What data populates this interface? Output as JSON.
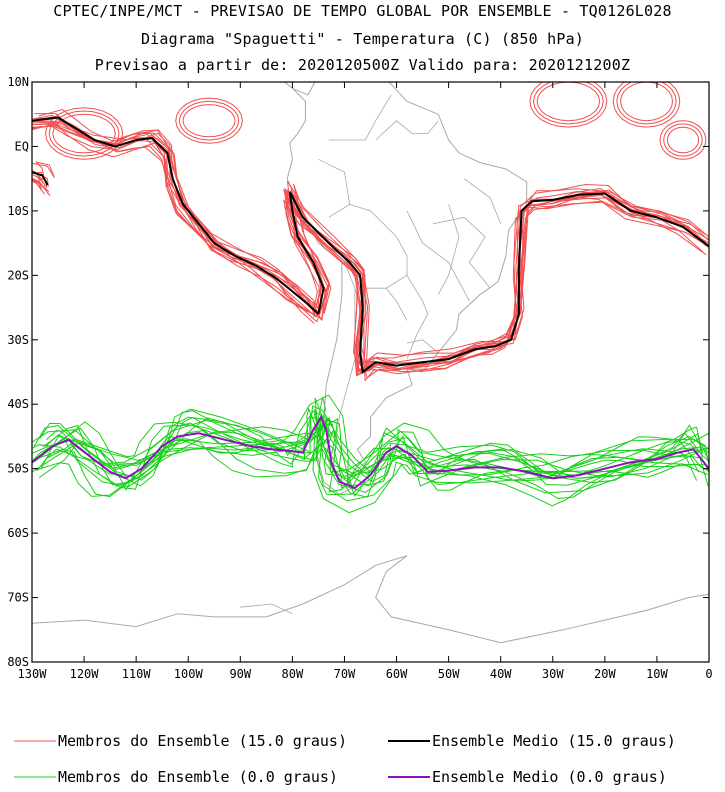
{
  "titles": {
    "line1": "CPTEC/INPE/MCT - PREVISAO DE TEMPO GLOBAL POR ENSEMBLE - TQ0126L028",
    "line2": "Diagrama \"Spaguetti\" - Temperatura (C) (850 hPa)",
    "line3": "Previsao a partir de: 2020120500Z  Valido para: 2020121200Z"
  },
  "colors": {
    "member_15": "#f05050",
    "mean_15": "#000000",
    "member_0": "#18d018",
    "mean_0": "#9010c0",
    "coast": "#a8a8a8"
  },
  "chart_data": {
    "type": "line",
    "projection": "lat-lon",
    "xlim": [
      -130,
      0
    ],
    "ylim": [
      -80,
      10
    ],
    "x_ticks": [
      -130,
      -120,
      -110,
      -100,
      -90,
      -80,
      -70,
      -60,
      -50,
      -40,
      -30,
      -20,
      -10,
      0
    ],
    "x_tick_labels": [
      "130W",
      "120W",
      "110W",
      "100W",
      "90W",
      "80W",
      "70W",
      "60W",
      "50W",
      "40W",
      "30W",
      "20W",
      "10W",
      "0"
    ],
    "y_ticks": [
      10,
      0,
      -10,
      -20,
      -30,
      -40,
      -50,
      -60,
      -70,
      -80
    ],
    "y_tick_labels": [
      "10N",
      "EQ",
      "10S",
      "20S",
      "30S",
      "40S",
      "50S",
      "60S",
      "70S",
      "80S"
    ],
    "grid": false,
    "legend": [
      {
        "label": "Membros do Ensemble (15.0 graus)",
        "color": "#f05050"
      },
      {
        "label": "Ensemble Medio (15.0 graus)",
        "color": "#000000"
      },
      {
        "label": "Membros do Ensemble (0.0 graus)",
        "color": "#18d018"
      },
      {
        "label": "Ensemble Medio (0.0 graus)",
        "color": "#9010c0"
      }
    ],
    "series": [
      {
        "name": "Ensemble Medio (15.0 graus)",
        "segments": [
          [
            [
              -130,
              4
            ],
            [
              -125,
              4.5
            ],
            [
              -122,
              3
            ],
            [
              -118,
              1
            ],
            [
              -114,
              0
            ],
            [
              -110,
              1
            ],
            [
              -107,
              1.3
            ],
            [
              -104,
              -1
            ],
            [
              -103,
              -5
            ],
            [
              -101,
              -9
            ],
            [
              -98,
              -12
            ],
            [
              -95,
              -15
            ],
            [
              -91,
              -17
            ],
            [
              -87,
              -18.5
            ],
            [
              -83,
              -20.5
            ],
            [
              -80,
              -22.5
            ],
            [
              -77,
              -24.5
            ],
            [
              -75,
              -26
            ]
          ],
          [
            [
              -130,
              -4
            ],
            [
              -128,
              -4.5
            ],
            [
              -127,
              -6
            ]
          ],
          [
            [
              -75,
              -26
            ],
            [
              -74,
              -22
            ],
            [
              -76,
              -18
            ],
            [
              -79,
              -14
            ],
            [
              -80,
              -10
            ],
            [
              -80.5,
              -7
            ],
            [
              -78,
              -11
            ],
            [
              -73,
              -15
            ],
            [
              -69,
              -18
            ],
            [
              -67,
              -20
            ],
            [
              -66.5,
              -25
            ],
            [
              -67,
              -32
            ],
            [
              -66.5,
              -35
            ],
            [
              -64,
              -33.5
            ],
            [
              -60,
              -34
            ],
            [
              -55,
              -33.5
            ],
            [
              -50,
              -33
            ],
            [
              -45,
              -31.5
            ],
            [
              -41,
              -31
            ],
            [
              -38,
              -30
            ],
            [
              -36.5,
              -26
            ],
            [
              -36.5,
              -19
            ],
            [
              -36,
              -10
            ],
            [
              -34,
              -8.5
            ],
            [
              -30,
              -8.3
            ],
            [
              -25,
              -7.5
            ],
            [
              -20,
              -7.3
            ],
            [
              -15,
              -10
            ],
            [
              -10,
              -11
            ],
            [
              -5,
              -12.5
            ],
            [
              0,
              -15.5
            ]
          ]
        ]
      },
      {
        "name": "Ensemble Medio (0.0 graus)",
        "segments": [
          [
            [
              -130,
              -49
            ],
            [
              -126,
              -46.5
            ],
            [
              -123,
              -45.5
            ],
            [
              -119,
              -48
            ],
            [
              -115,
              -50.5
            ],
            [
              -112,
              -51.5
            ],
            [
              -109,
              -50
            ],
            [
              -105,
              -46.5
            ],
            [
              -102,
              -45
            ],
            [
              -98,
              -44.5
            ],
            [
              -93,
              -45.5
            ],
            [
              -88,
              -46.5
            ],
            [
              -84,
              -47
            ],
            [
              -80,
              -47.3
            ],
            [
              -78,
              -47.5
            ],
            [
              -76,
              -44
            ],
            [
              -74.5,
              -42
            ],
            [
              -73.5,
              -44
            ],
            [
              -72.5,
              -49
            ],
            [
              -71,
              -52
            ],
            [
              -68,
              -53
            ],
            [
              -65,
              -51
            ],
            [
              -62,
              -47.5
            ],
            [
              -60,
              -46.5
            ],
            [
              -57,
              -48
            ],
            [
              -54,
              -50.5
            ],
            [
              -50,
              -50.3
            ],
            [
              -45,
              -49.8
            ],
            [
              -40,
              -49.8
            ],
            [
              -35,
              -50.5
            ],
            [
              -30,
              -51.5
            ],
            [
              -25,
              -51
            ],
            [
              -20,
              -50
            ],
            [
              -15,
              -49
            ],
            [
              -10,
              -48.5
            ],
            [
              -6,
              -47.5
            ],
            [
              -3,
              -47
            ],
            [
              0,
              -50
            ]
          ]
        ]
      }
    ]
  },
  "landmasses": [
    "South America",
    "Antarctica"
  ],
  "axes_label": {
    "x": "",
    "y": ""
  }
}
